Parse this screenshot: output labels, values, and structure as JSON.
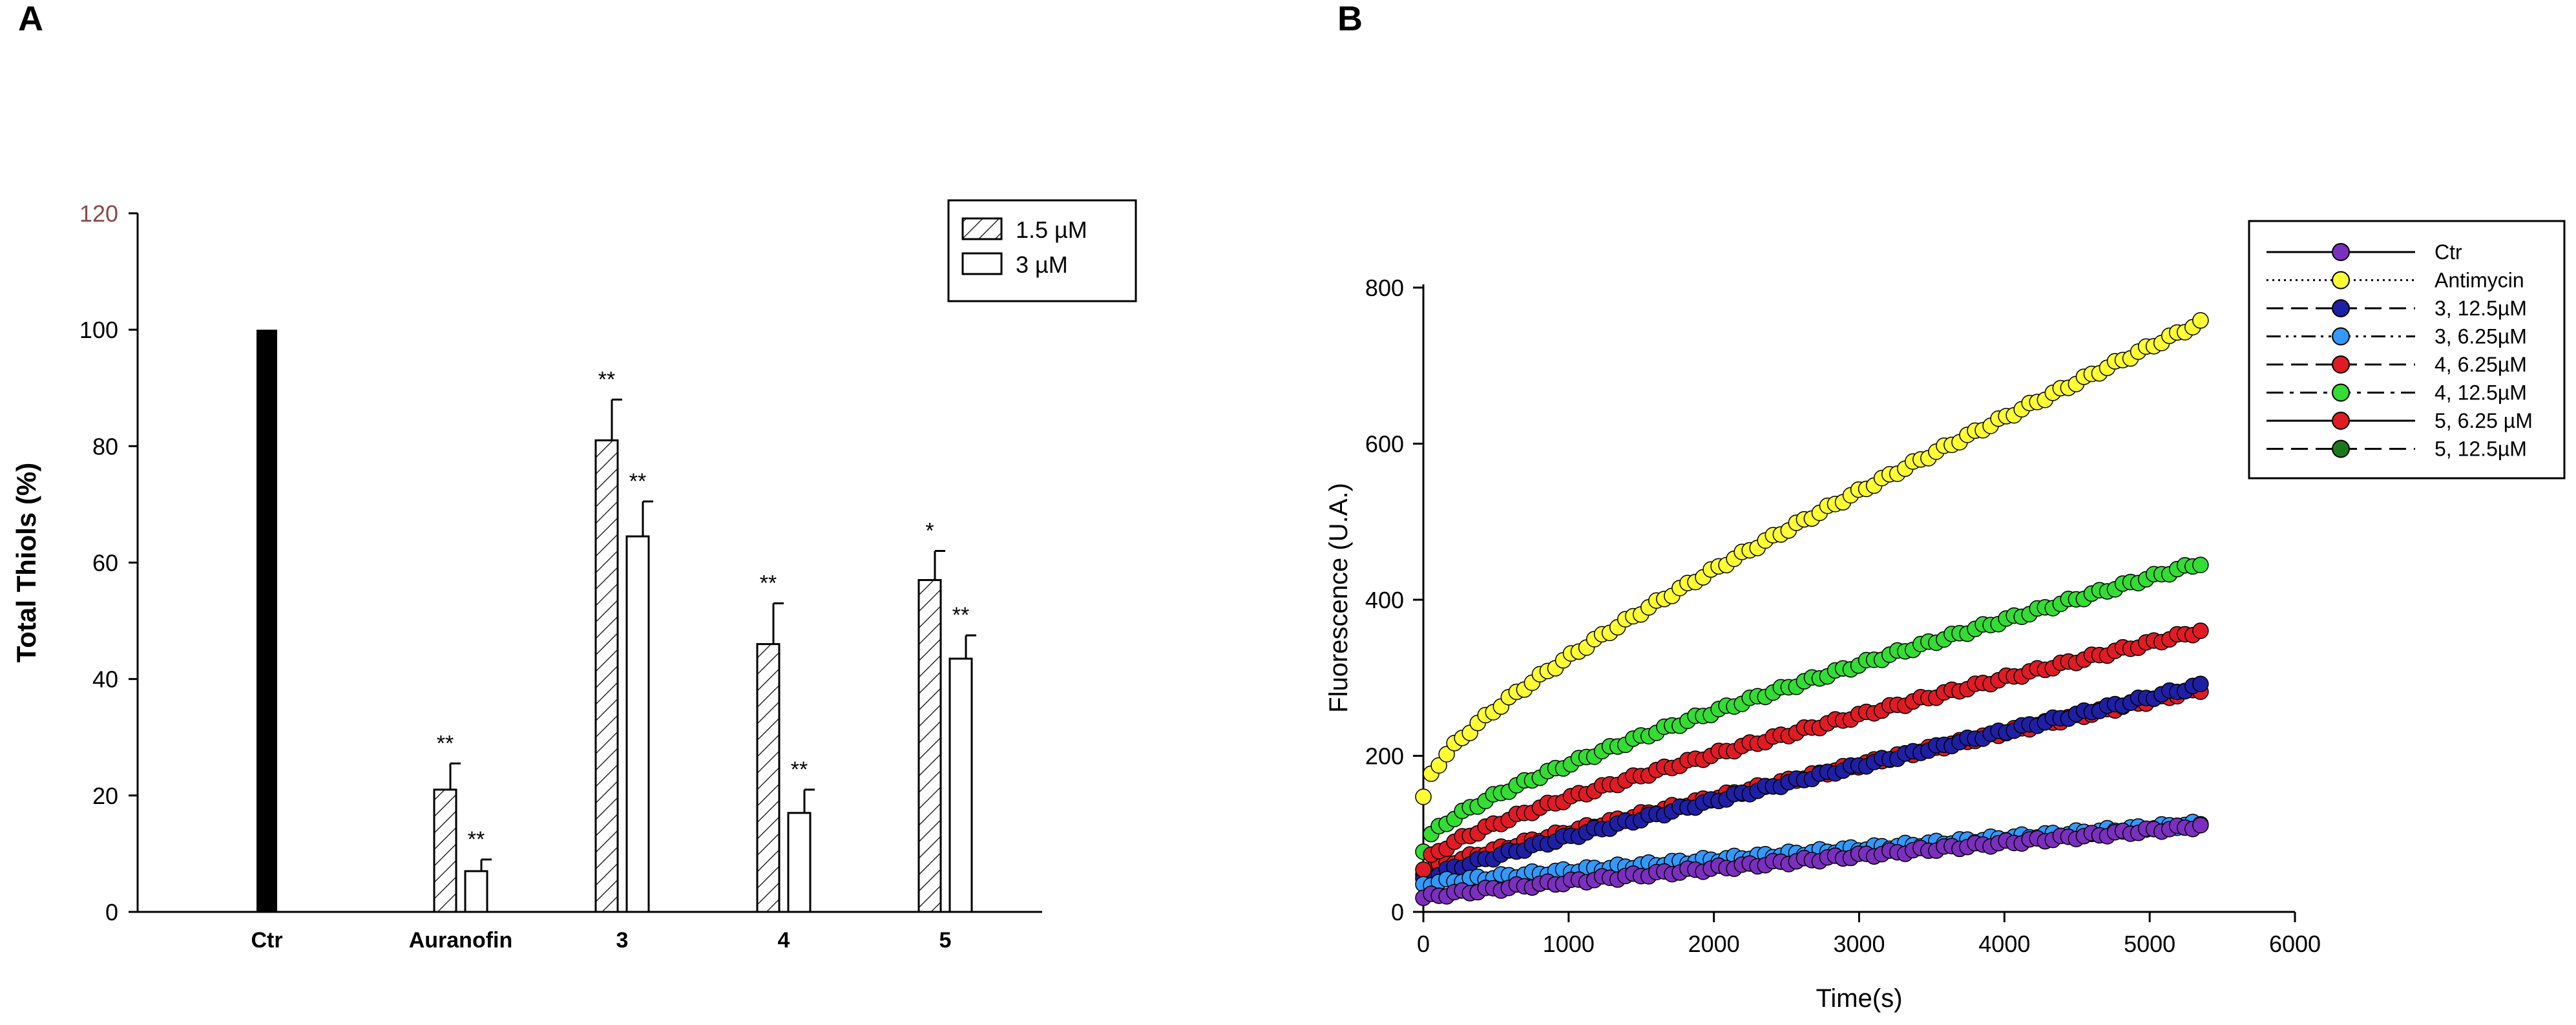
{
  "panels": {
    "a": "A",
    "b": "B"
  },
  "chart_data": [
    {
      "type": "bar",
      "ylabel": "Total Thiols (%)",
      "xlabel": "",
      "ylim": [
        0,
        120
      ],
      "yticks": [
        0,
        20,
        40,
        60,
        80,
        100,
        120
      ],
      "categories": [
        "Ctr",
        "Auranofin",
        "3",
        "4",
        "5"
      ],
      "control": {
        "category": "Ctr",
        "value": 100,
        "color": "#000000"
      },
      "series": [
        {
          "name": "1.5 µM",
          "pattern": "hatched",
          "values": [
            null,
            21,
            81,
            46,
            57
          ],
          "errors": [
            null,
            4.5,
            7,
            7,
            5
          ],
          "significance": [
            null,
            "**",
            "**",
            "**",
            "*"
          ]
        },
        {
          "name": "3 µM",
          "pattern": "open",
          "values": [
            null,
            7,
            64.5,
            17,
            43.5
          ],
          "errors": [
            null,
            2,
            6,
            4,
            4
          ],
          "significance": [
            null,
            "**",
            "**",
            "**",
            "**"
          ]
        }
      ],
      "legend": "top-right",
      "grid": false
    },
    {
      "type": "line",
      "xlabel": "Time(s)",
      "ylabel": "Fluorescence (U.A.)",
      "xlim": [
        0,
        6000
      ],
      "ylim": [
        0,
        800
      ],
      "xticks": [
        0,
        1000,
        2000,
        3000,
        4000,
        5000,
        6000
      ],
      "yticks": [
        0,
        200,
        400,
        600,
        800
      ],
      "legend": "top-right",
      "grid": false,
      "x": [
        0,
        5350
      ],
      "series": [
        {
          "name": "Ctr",
          "color": "#7b2fbf",
          "dash": "solid",
          "y_start": 18,
          "y_end": 110,
          "y_curve": "near-linear"
        },
        {
          "name": "Antimycin",
          "color": "#ffff33",
          "dash": "dotted",
          "y_start": 145,
          "y_end": 755,
          "y_curve": "sqrt-then-linear"
        },
        {
          "name": "3, 12.5µM",
          "color": "#1f1fa6",
          "dash": "long-dash",
          "y_start": 40,
          "y_end": 290,
          "y_curve": "near-linear"
        },
        {
          "name": "3, 6.25µM",
          "color": "#3399ff",
          "dash": "dash-dot-dot",
          "y_start": 35,
          "y_end": 113,
          "y_curve": "near-linear"
        },
        {
          "name": "4, 6.25µM",
          "color": "#e01b24",
          "dash": "long-dash",
          "y_start": 50,
          "y_end": 285,
          "y_curve": "near-linear"
        },
        {
          "name": "4, 12.5µM",
          "color": "#33dd33",
          "dash": "dash-dot",
          "y_start": 80,
          "y_end": 447,
          "y_curve": "sqrt-then-linear"
        },
        {
          "name": "5, 6.25 µM",
          "color": "#e01b24",
          "dash": "solid",
          "y_start": 55,
          "y_end": 360,
          "y_curve": "sqrt-then-linear"
        },
        {
          "name": "5, 12.5µM",
          "color": "#1a7a1a",
          "dash": "long-dash",
          "y_start": null,
          "y_end": null,
          "y_curve": "hidden"
        }
      ]
    }
  ]
}
